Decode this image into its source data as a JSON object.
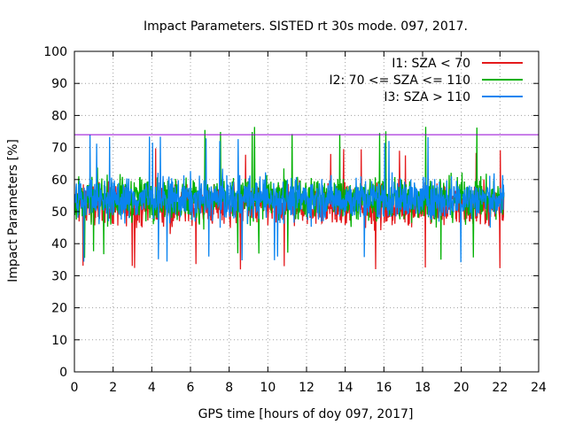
{
  "chart_data": {
    "type": "line",
    "title": "Impact Parameters. SISTED rt 30s mode. 097, 2017.",
    "xlabel": "GPS time [hours of doy 097, 2017]",
    "ylabel": "Impact Parameters [%]",
    "xlim": [
      0,
      24
    ],
    "ylim": [
      0,
      100
    ],
    "xticks": [
      0,
      2,
      4,
      6,
      8,
      10,
      12,
      14,
      16,
      18,
      20,
      22,
      24
    ],
    "yticks": [
      0,
      10,
      20,
      30,
      40,
      50,
      60,
      70,
      80,
      90,
      100
    ],
    "grid": true,
    "legend_position": "top-right",
    "reference_line": {
      "y": 74,
      "color": "#9400d3"
    },
    "series": [
      {
        "name": "I1: SZA < 70",
        "color": "#e41a1c",
        "mean": 52,
        "min": 31,
        "max": 70,
        "t_start": 0,
        "t_end": 22.2
      },
      {
        "name": "I2: 70 <= SZA <= 110",
        "color": "#00b000",
        "mean": 54,
        "min": 35,
        "max": 77,
        "t_start": 0,
        "t_end": 22.2
      },
      {
        "name": "I3: SZA > 110",
        "color": "#0a84f0",
        "mean": 54,
        "min": 33,
        "max": 74,
        "t_start": 0,
        "t_end": 22.2
      }
    ]
  }
}
